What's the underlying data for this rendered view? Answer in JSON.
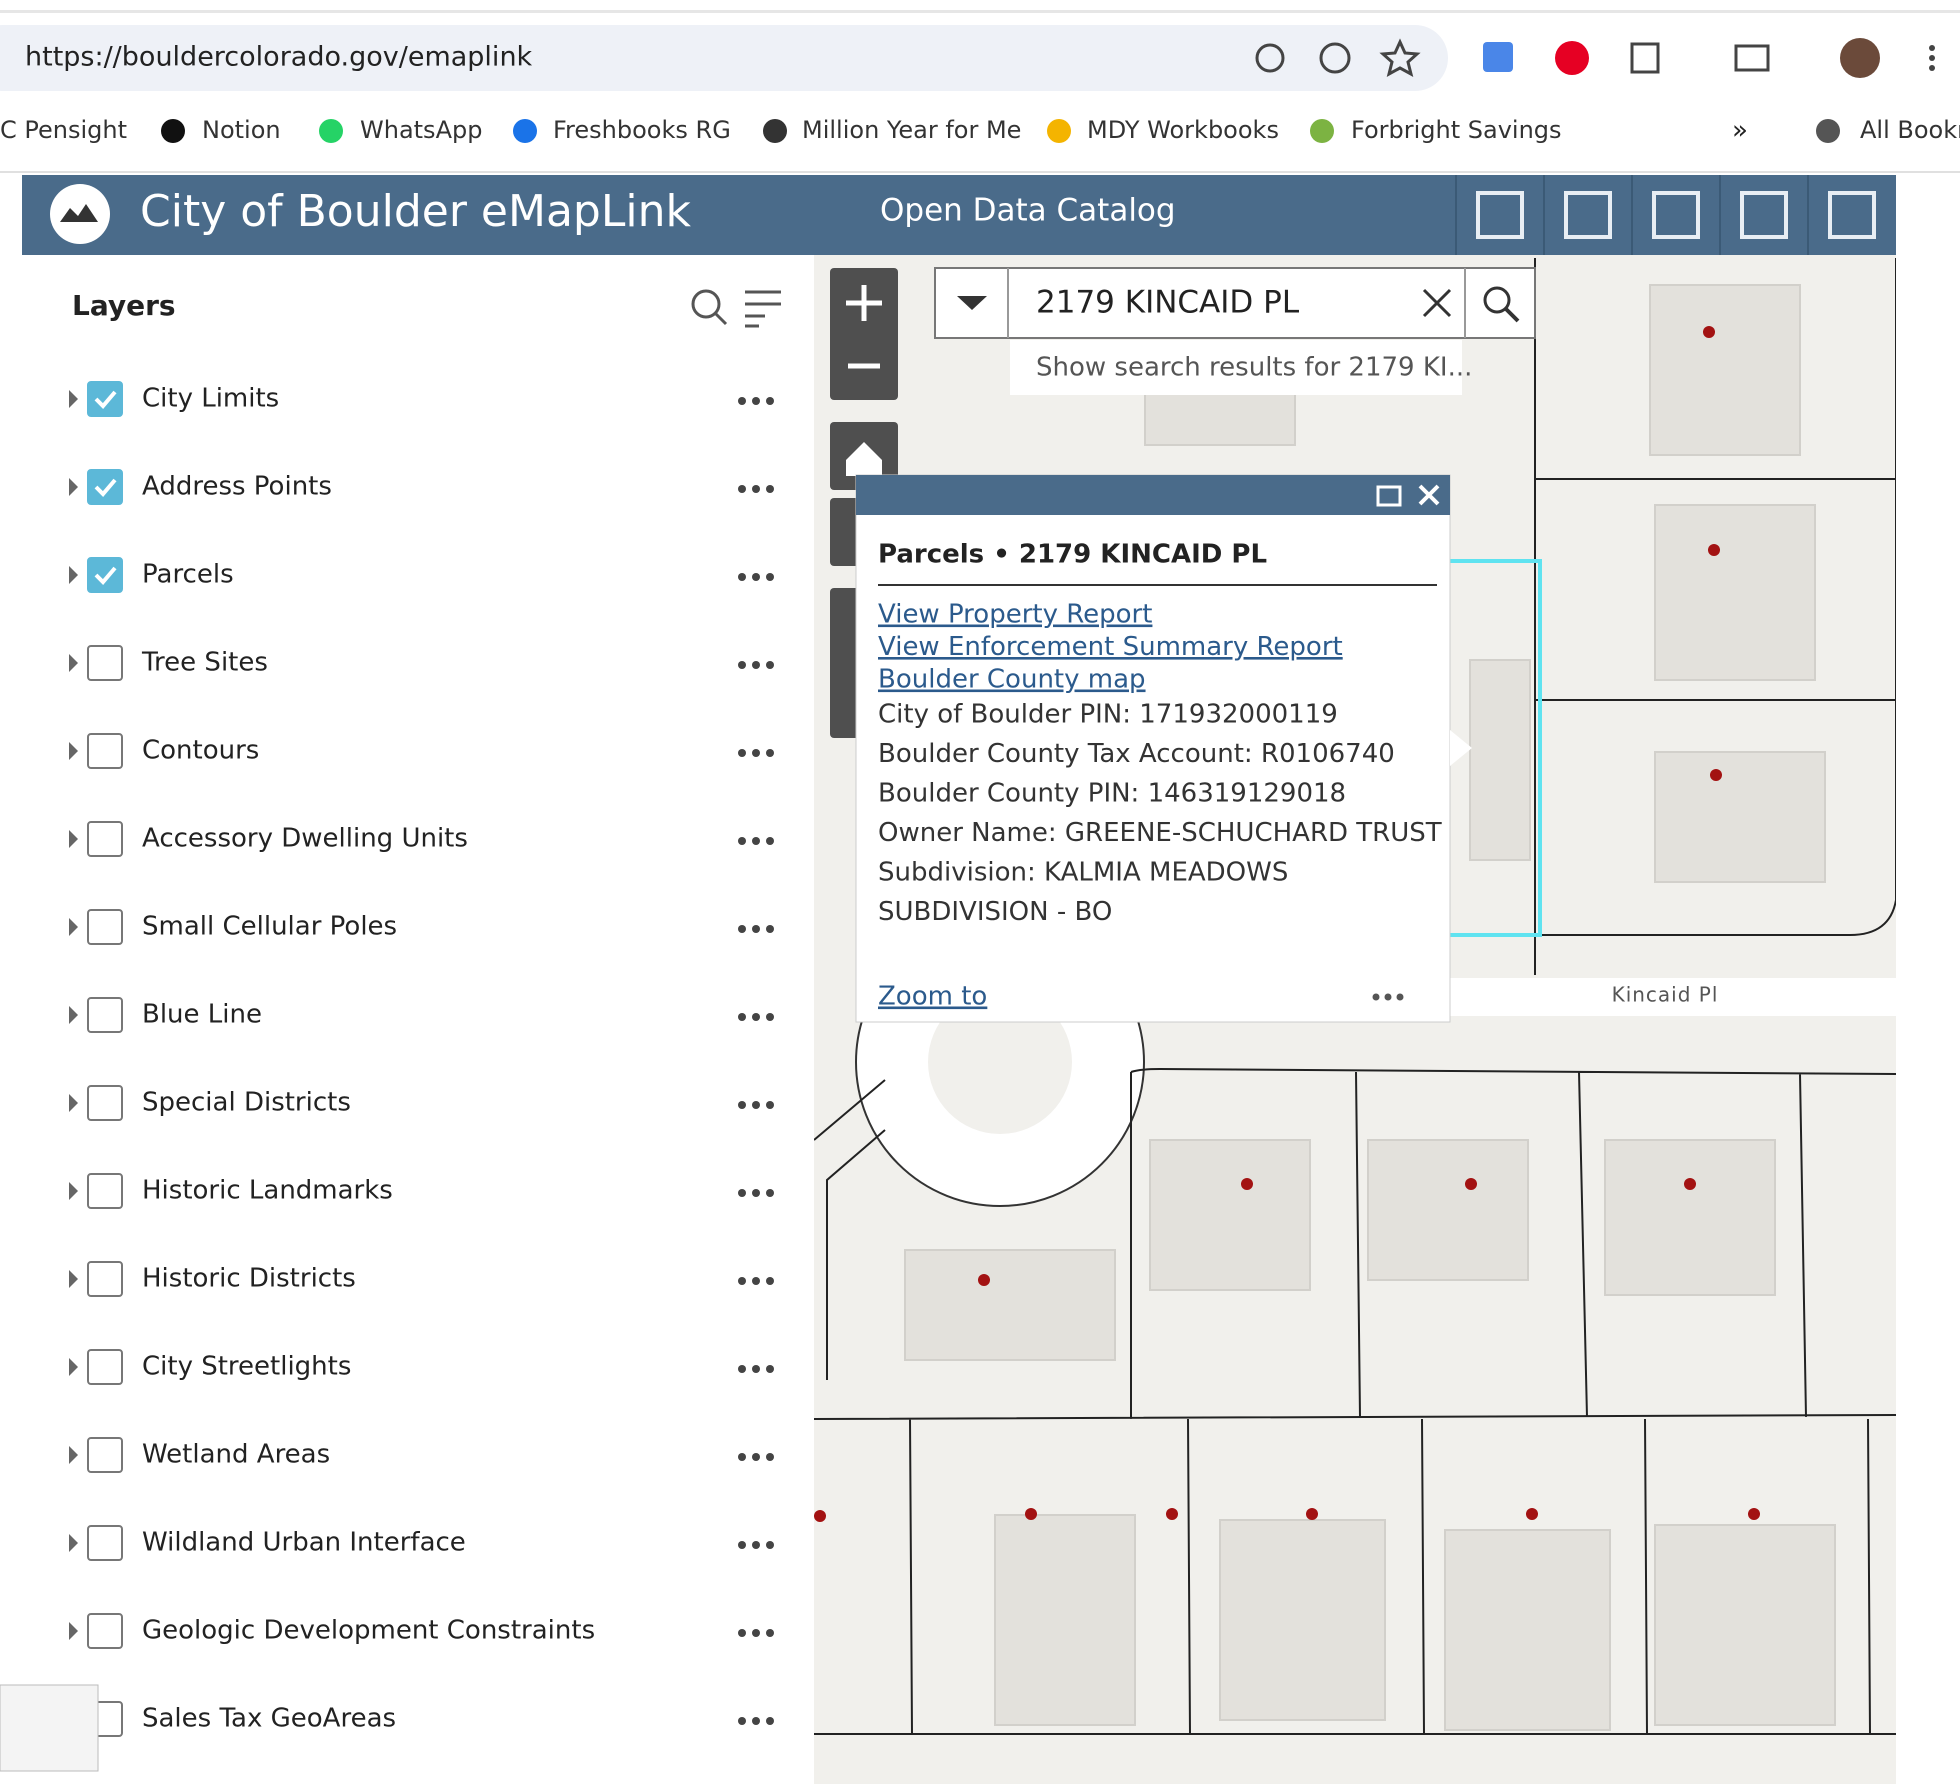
{
  "browser": {
    "url": "https://bouldercolorado.gov/emaplink",
    "bookmarks": [
      "C Pensight",
      "Notion",
      "WhatsApp",
      "Freshbooks RG",
      "Million Year for Me",
      "MDY Workbooks",
      "Forbright Savings",
      "All Bookr"
    ]
  },
  "header": {
    "title": "City of Boulder eMapLink",
    "nav": "Open Data Catalog"
  },
  "layers_panel": {
    "title": "Layers",
    "layers": [
      {
        "name": "City Limits",
        "checked": true
      },
      {
        "name": "Address Points",
        "checked": true
      },
      {
        "name": "Parcels",
        "checked": true
      },
      {
        "name": "Tree Sites",
        "checked": false
      },
      {
        "name": "Contours",
        "checked": false
      },
      {
        "name": "Accessory Dwelling Units",
        "checked": false
      },
      {
        "name": "Small Cellular Poles",
        "checked": false
      },
      {
        "name": "Blue Line",
        "checked": false
      },
      {
        "name": "Special Districts",
        "checked": false
      },
      {
        "name": "Historic Landmarks",
        "checked": false
      },
      {
        "name": "Historic Districts",
        "checked": false
      },
      {
        "name": "City Streetlights",
        "checked": false
      },
      {
        "name": "Wetland Areas",
        "checked": false
      },
      {
        "name": "Wildland Urban Interface",
        "checked": false
      },
      {
        "name": "Geologic Development Constraints",
        "checked": false
      },
      {
        "name": "Sales Tax GeoAreas",
        "checked": false
      }
    ]
  },
  "search": {
    "query": "2179 KINCAID PL",
    "suggestion": "Show search results for 2179 KI..."
  },
  "popup": {
    "title": "Parcels • 2179 KINCAID PL",
    "links": [
      "View Property Report",
      "View Enforcement Summary Report",
      "Boulder County map"
    ],
    "fields": [
      "City of Boulder PIN: 171932000119",
      "Boulder County Tax Account: R0106740",
      "Boulder County PIN: 146319129018",
      "Owner Name: GREENE-SCHUCHARD TRUST",
      "Subdivision: KALMIA MEADOWS",
      "SUBDIVISION - BO"
    ],
    "action": "Zoom to"
  },
  "map": {
    "street_label": "Kincaid Pl"
  }
}
